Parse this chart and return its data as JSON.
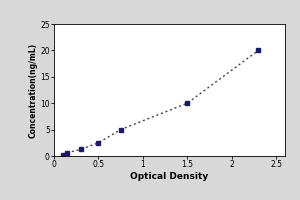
{
  "xlabel": "Optical Density",
  "ylabel": "Concentration(ng/mL)",
  "x_data": [
    0.1,
    0.15,
    0.3,
    0.5,
    0.75,
    1.5,
    2.3
  ],
  "y_data": [
    0.156,
    0.625,
    1.25,
    2.5,
    5.0,
    10.0,
    20.0
  ],
  "xlim": [
    0,
    2.6
  ],
  "ylim": [
    0,
    25
  ],
  "xticks": [
    0,
    0.5,
    1,
    1.5,
    2,
    2.5
  ],
  "yticks": [
    0,
    5,
    10,
    15,
    20,
    25
  ],
  "xtick_labels": [
    "0",
    "0.5",
    "1",
    "1.5",
    "2",
    "2.5"
  ],
  "ytick_labels": [
    "0",
    "5",
    "10",
    "15",
    "20",
    "25"
  ],
  "line_color": "#444444",
  "marker_color": "#1a1a6e",
  "bg_color": "#ffffff",
  "outer_bg": "#d8d8d8",
  "box_color": "#000000"
}
